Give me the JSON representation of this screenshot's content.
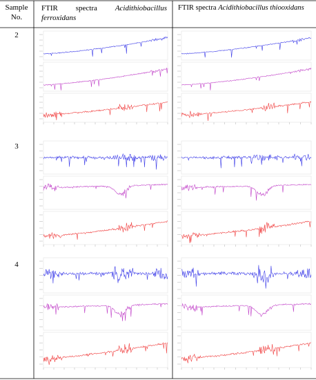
{
  "table": {
    "header": {
      "sample": "Sample No.",
      "columns": [
        {
          "label": "FTIR  spectra",
          "species": "Acidithiobacillus ferroxidans"
        },
        {
          "label": "FTIR spectra",
          "species": "Acidithiobacillus thiooxidans"
        }
      ]
    },
    "rows": [
      {
        "sample": "2"
      },
      {
        "sample": "3"
      },
      {
        "sample": "4"
      }
    ]
  }
}
